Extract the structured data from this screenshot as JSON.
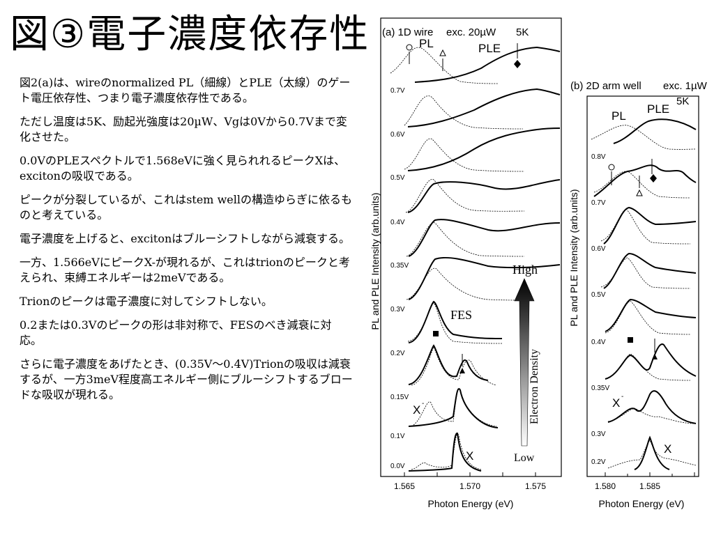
{
  "slide": {
    "title": "図③電子濃度依存性",
    "paragraphs": [
      "図2(a)は、wireのnormalized PL（細線）とPLE（太線）のゲート電圧依存性、つまり電子濃度依存性である。",
      "ただし温度は5K、励起光強度は20µW、Vgは0Vから0.7Vまで変化させた。",
      "0.0VのPLEスペクトルで1.568eVに強く見られれるピークXは、excitonの吸収である。",
      "ピークが分裂しているが、これはstem wellの構造ゆらぎに依るものと考えている。",
      "電子濃度を上げると、excitonはブルーシフトしながら減衰する。",
      "一方、1.566eVにピークX-が現れるが、これはtrionのピークと考えられ、束縛エネルギーは2meVである。",
      "Trionのピークは電子濃度に対してシフトしない。",
      "0.2または0.3Vのピークの形は非対称で、FESのべき減衰に対応。",
      "さらに電子濃度をあげたとき、(0.35V～0.4V)Trionの吸収は減衰するが、一方3meV程度高エネルギー側にブルーシフトするブロードな吸収が現れる。"
    ]
  },
  "figure": {
    "y_axis_label": "PL and PLE Intensity (arb.units)",
    "x_axis_label": "Photon Energy (eV)",
    "panel_a": {
      "label": "(a) 1D wire",
      "exc": "exc. 20µW",
      "temp": "5K",
      "pl_label": "PL",
      "ple_label": "PLE",
      "fes_label": "FES",
      "x_minus_label": "X",
      "x_minus_sup": "-",
      "x_label": "X",
      "arrow_high": "High",
      "arrow_low": "Low",
      "arrow_text": "Electron Density",
      "voltages": [
        "0.7V",
        "0.6V",
        "0.5V",
        "0.4V",
        "0.35V",
        "0.3V",
        "0.2V",
        "0.15V",
        "0.1V",
        "0.0V"
      ],
      "x_ticks": [
        "1.565",
        "1.570",
        "1.575"
      ]
    },
    "panel_b": {
      "label": "(b) 2D arm well",
      "exc": "exc. 1µW",
      "temp": "5K",
      "pl_label": "PL",
      "ple_label": "PLE",
      "x_minus_label": "X",
      "x_minus_sup": "-",
      "x_label": "X",
      "voltages": [
        "0.8V",
        "0.7V",
        "0.6V",
        "0.5V",
        "0.4V",
        "0.35V",
        "0.3V",
        "0.2V"
      ],
      "x_ticks": [
        "1.580",
        "1.585"
      ]
    },
    "markers": {
      "circle": "○",
      "triangle_open": "△",
      "diamond": "◆",
      "square": "■",
      "triangle_filled": "▲"
    }
  }
}
